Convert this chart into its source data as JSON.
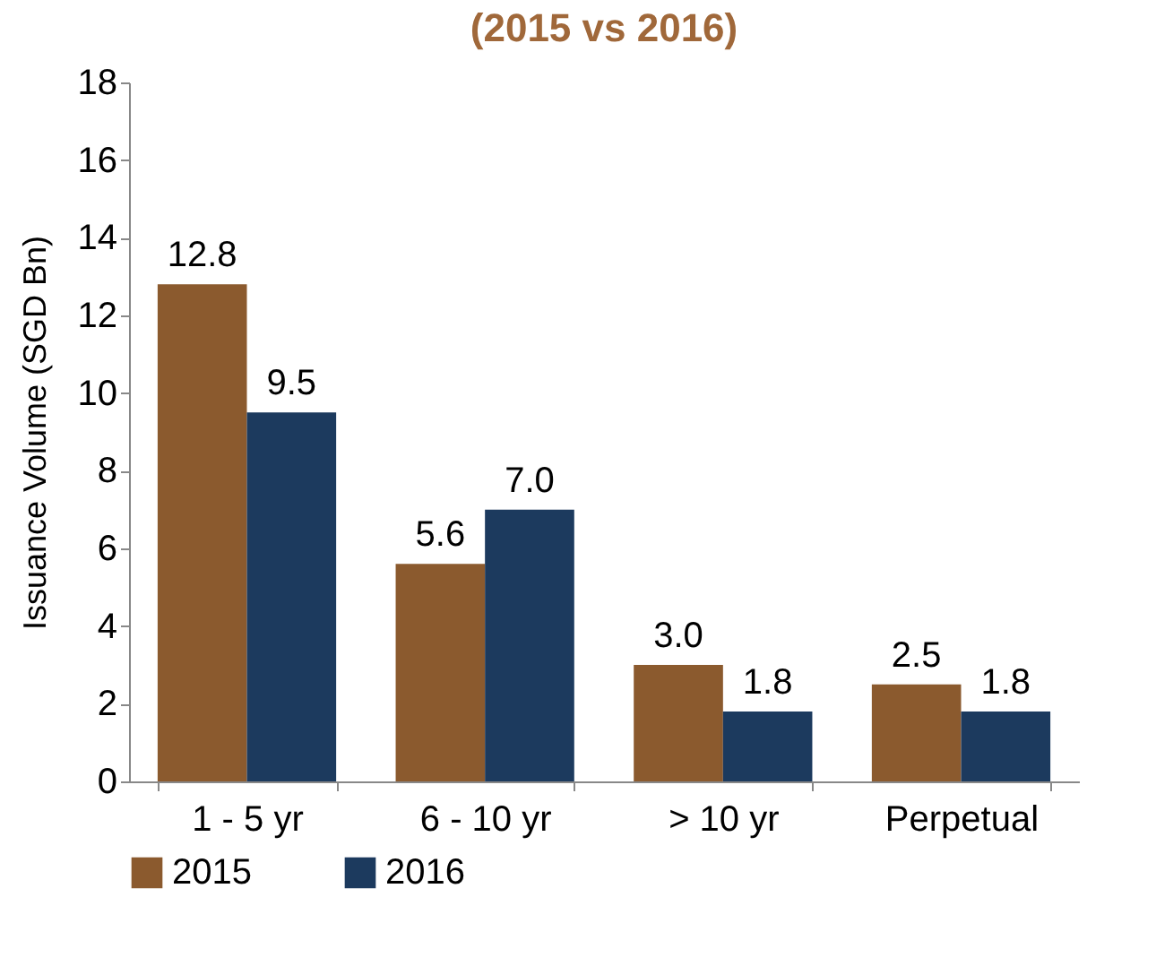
{
  "chart_data": {
    "type": "bar",
    "title": "(2015 vs 2016)",
    "ylabel": "Issuance Volume (SGD Bn)",
    "categories": [
      "1 - 5 yr",
      "6 - 10 yr",
      "> 10 yr",
      "Perpetual"
    ],
    "series": [
      {
        "name": "2015",
        "color": "#8b5a2e",
        "values": [
          12.8,
          5.6,
          3.0,
          2.5
        ],
        "value_labels": [
          "12.8",
          "5.6",
          "3.0",
          "2.5"
        ]
      },
      {
        "name": "2016",
        "color": "#1c3a5e",
        "values": [
          9.5,
          7.0,
          1.8,
          1.8
        ],
        "value_labels": [
          "9.5",
          "7.0",
          "1.8",
          "1.8"
        ]
      }
    ],
    "ylim": [
      0,
      18
    ],
    "yticks": [
      0,
      2,
      4,
      6,
      8,
      10,
      12,
      14,
      16,
      18
    ],
    "grid": false,
    "legend": "bottom"
  }
}
